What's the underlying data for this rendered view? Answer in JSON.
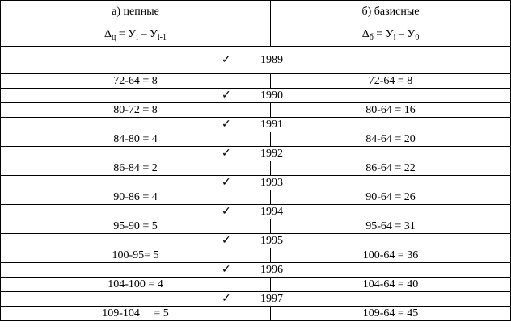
{
  "header": [
    {
      "title": "а) цепные",
      "formula": [
        {
          "text": "Δ"
        },
        {
          "sub": "ц"
        },
        {
          "text": " = У"
        },
        {
          "sub": "i"
        },
        {
          "text": " – У"
        },
        {
          "sub": "i-1"
        }
      ]
    },
    {
      "title": "б) базисные",
      "formula": [
        {
          "text": "Δ"
        },
        {
          "sub": "б"
        },
        {
          "text": " = У"
        },
        {
          "sub": "i"
        },
        {
          "text": " – У"
        },
        {
          "sub": "0"
        }
      ]
    }
  ],
  "rows": [
    {
      "check": "✓",
      "year": "1989"
    },
    {
      "cells": [
        "72-64 = 8",
        "72-64 = 8"
      ]
    },
    {
      "check": "✓",
      "year": "1990"
    },
    {
      "cells": [
        "80-72 = 8",
        "80-64 = 16"
      ]
    },
    {
      "check": "✓",
      "year": "1991"
    },
    {
      "cells": [
        "84-80 = 4",
        "84-64 = 20"
      ]
    },
    {
      "check": "✓",
      "year": "1992"
    },
    {
      "cells": [
        "86-84 = 2",
        "86-64 = 22"
      ]
    },
    {
      "check": "✓",
      "year": "1993"
    },
    {
      "cells": [
        "90-86 = 4",
        "90-64 = 26"
      ]
    },
    {
      "check": "✓",
      "year": "1994"
    },
    {
      "cells": [
        "95-90 = 5",
        "95-64 = 31"
      ]
    },
    {
      "check": "✓",
      "year": "1995"
    },
    {
      "cells": [
        "100-95= 5",
        "100-64 = 36"
      ]
    },
    {
      "check": "✓",
      "year": "1996"
    },
    {
      "cells": [
        "104-100 = 4",
        "104-64 = 40"
      ]
    },
    {
      "check": "✓",
      "year": "1997"
    },
    {
      "cells": [
        "109-104     = 5",
        "109-64 = 45"
      ]
    }
  ]
}
